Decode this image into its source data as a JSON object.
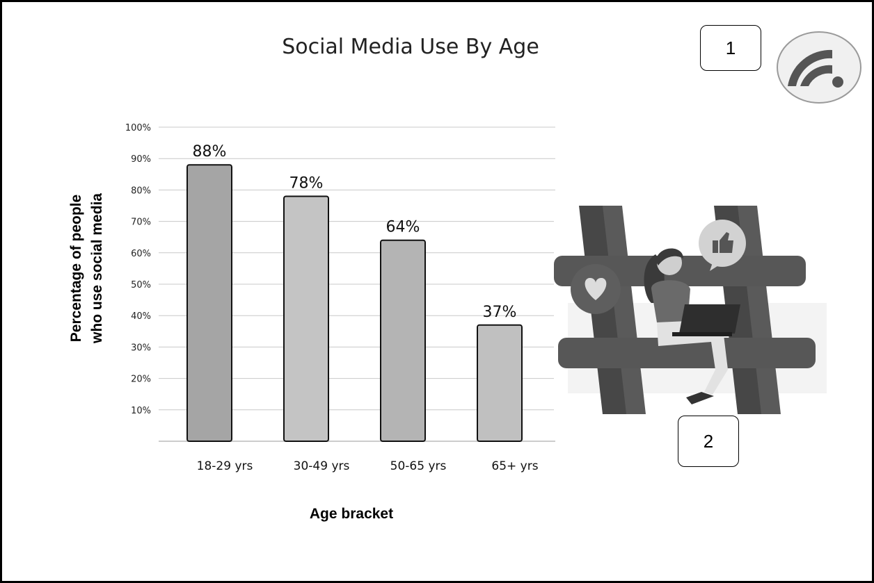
{
  "title": "Social Media Use By Age",
  "callouts": {
    "one": "1",
    "two": "2"
  },
  "icons": {
    "top_right": "wifi-icon",
    "illustration": "hashtag-woman-laptop-illustration"
  },
  "chart_data": {
    "type": "bar",
    "title": "Social Media Use By Age",
    "xlabel": "Age bracket",
    "ylabel_lines": [
      "Percentage of people",
      "who use social media"
    ],
    "categories": [
      "18-29 yrs",
      "30-49 yrs",
      "50-65 yrs",
      "65+ yrs"
    ],
    "values": [
      88,
      78,
      64,
      37
    ],
    "value_labels": [
      "88%",
      "78%",
      "64%",
      "37%"
    ],
    "y_ticks": [
      10,
      20,
      30,
      40,
      50,
      60,
      70,
      80,
      90,
      100
    ],
    "y_tick_labels": [
      "10%",
      "20%",
      "30%",
      "40%",
      "50%",
      "60%",
      "70%",
      "80%",
      "90%",
      "100%"
    ],
    "ylim": [
      0,
      100
    ],
    "grid": true,
    "bar_colors": [
      "#a5a5a5",
      "#c4c4c4",
      "#b4b4b4",
      "#c0c0c0"
    ]
  }
}
